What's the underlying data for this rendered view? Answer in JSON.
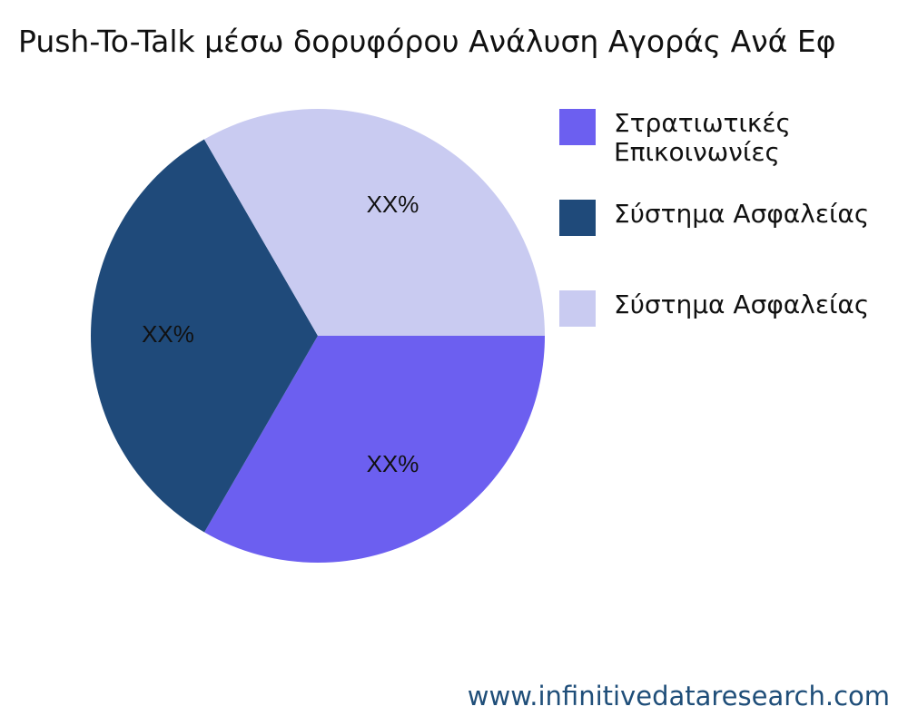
{
  "title": "Push-To-Talk μέσω δορυφόρου Ανάλυση Αγοράς Ανά Εφ",
  "watermark": "www.infinitivedataresearch.com",
  "chart_data": {
    "type": "pie",
    "title": "Push-To-Talk μέσω δορυφόρου Ανάλυση Αγοράς Ανά Εφ",
    "categories": [
      "Στρατιωτικές Επικοινωνίες",
      "Σύστημα Ασφαλείας",
      "Σύστημα Ασφαλείας"
    ],
    "values": [
      33.33,
      33.33,
      33.34
    ],
    "slice_labels": [
      "XX%",
      "XX%",
      "XX%"
    ],
    "colors": [
      "#6c5ff0",
      "#1f4a7a",
      "#c9cbf1"
    ],
    "legend_position": "right",
    "direction": "clockwise from 3 o'clock"
  }
}
